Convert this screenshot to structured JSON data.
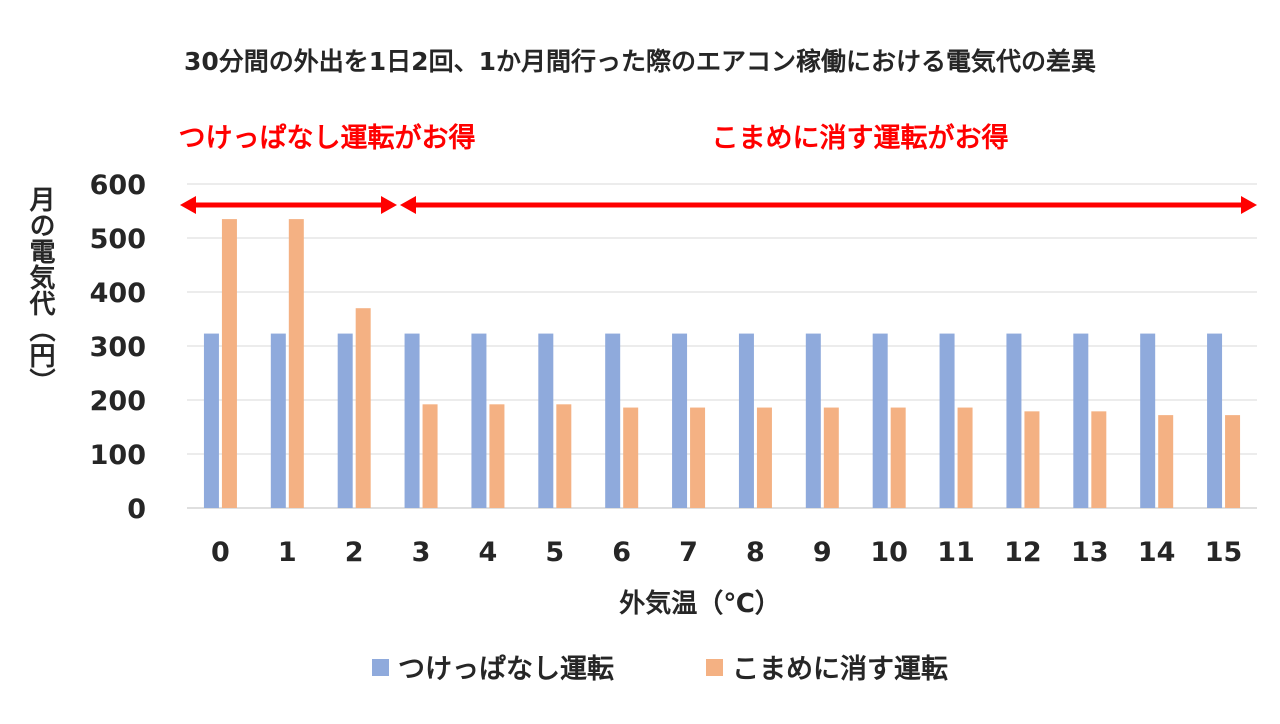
{
  "colors": {
    "series_on": "#8faadc",
    "series_off": "#f4b183",
    "annotation": "#ff0000",
    "grid": "#d9d9d9",
    "text": "#262626"
  },
  "chart_data": {
    "type": "bar",
    "title": "30分間の外出を1日2回、1か月間行った際のエアコン稼働における電気代の差異",
    "xlabel": "外気温（℃）",
    "ylabel": "月の電気代（円）",
    "ylim": [
      0,
      600
    ],
    "yticks": [
      0,
      100,
      200,
      300,
      400,
      500,
      600
    ],
    "grid": true,
    "legend_position": "bottom",
    "categories": [
      "0",
      "1",
      "2",
      "3",
      "4",
      "5",
      "6",
      "7",
      "8",
      "9",
      "10",
      "11",
      "12",
      "13",
      "14",
      "15"
    ],
    "series": [
      {
        "name": "つけっぱなし運転",
        "color": "#8faadc",
        "values": [
          323,
          323,
          323,
          323,
          323,
          323,
          323,
          323,
          323,
          323,
          323,
          323,
          323,
          323,
          323,
          323
        ]
      },
      {
        "name": "こまめに消す運転",
        "color": "#f4b183",
        "values": [
          535,
          535,
          370,
          192,
          192,
          192,
          186,
          186,
          186,
          186,
          186,
          186,
          179,
          179,
          172,
          172
        ]
      }
    ],
    "annotations": [
      {
        "text": "つけっぱなし運転がお得",
        "from_category": "0",
        "to_category": "2"
      },
      {
        "text": "こまめに消す運転がお得",
        "from_category": "3",
        "to_category": "15"
      }
    ]
  }
}
